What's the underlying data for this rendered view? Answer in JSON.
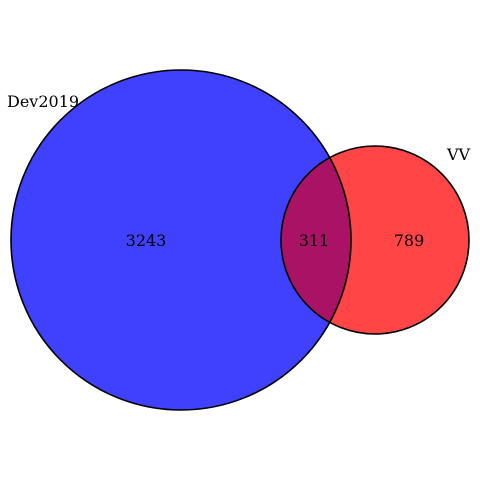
{
  "venn": {
    "sets": [
      {
        "id": "set-a",
        "label": "Dev2019",
        "only_count": "3243",
        "fill": "#4040ff"
      },
      {
        "id": "set-b",
        "label": "VV",
        "only_count": "789",
        "fill": "#ff4545"
      }
    ],
    "intersection": {
      "count": "311",
      "fill": "#aa1266"
    },
    "stroke": "#000000"
  }
}
